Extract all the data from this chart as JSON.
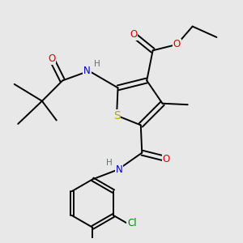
{
  "bg_color": "#e8e8e8",
  "fig_size": [
    3.0,
    3.0
  ],
  "dpi": 100,
  "atom_colors": {
    "C": "#000000",
    "H": "#607070",
    "N": "#0000cc",
    "O": "#dd0000",
    "S": "#aaaa00",
    "Cl": "#008800"
  },
  "bond_color": "#000000",
  "bond_width": 1.4,
  "font_size_atom": 8.5,
  "font_size_small": 7.0
}
